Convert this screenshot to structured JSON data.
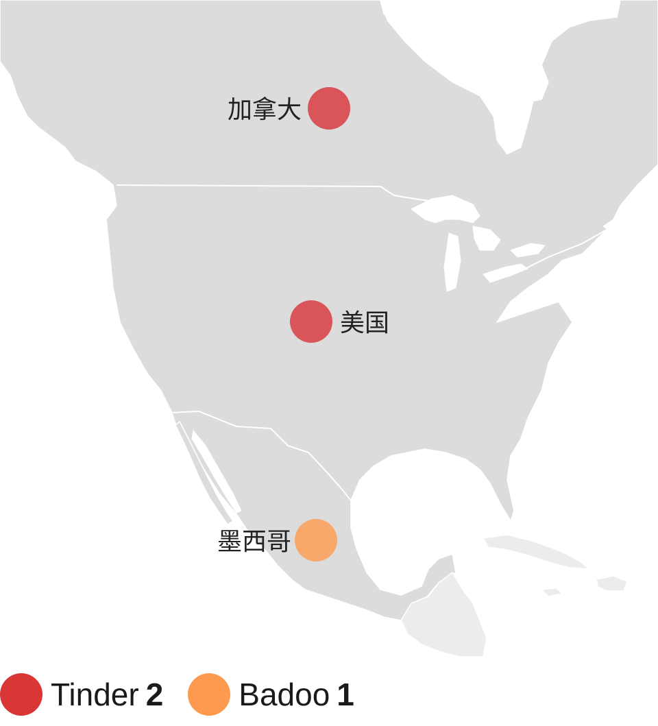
{
  "colors": {
    "tinder": "#d93636",
    "badoo": "#fd9a4f",
    "land": "#dcdcdc",
    "land_dim": "#ececec"
  },
  "countries": [
    {
      "name": "加拿大",
      "app": "Tinder",
      "color": "#d9555a"
    },
    {
      "name": "美国",
      "app": "Tinder",
      "color": "#d9555a"
    },
    {
      "name": "墨西哥",
      "app": "Badoo",
      "color": "#f9a86c"
    }
  ],
  "legend": [
    {
      "name": "Tinder",
      "count": "2",
      "color": "#d93636"
    },
    {
      "name": "Badoo",
      "count": "1",
      "color": "#fd9a4f"
    }
  ]
}
